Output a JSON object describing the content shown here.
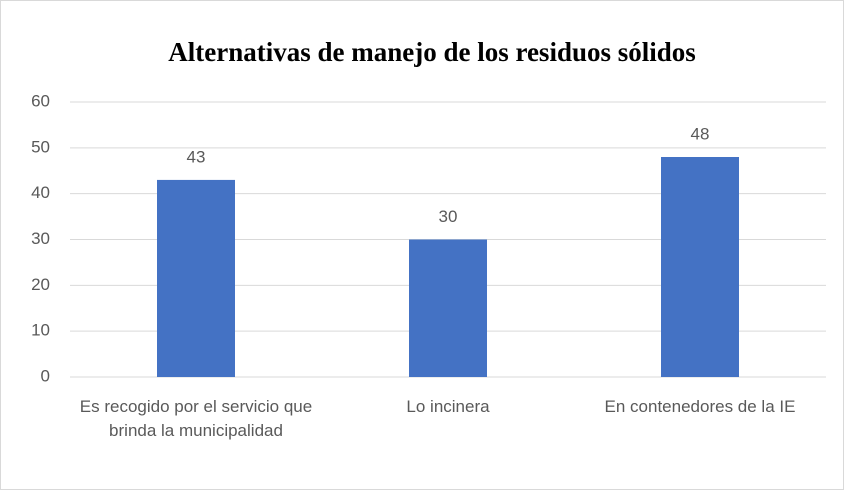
{
  "chart_data": {
    "type": "bar",
    "title": "Alternativas de manejo de los residuos sólidos",
    "categories": [
      "Es recogido por el servicio que brinda la municipalidad",
      "Lo incinera",
      "En contenedores de la IE"
    ],
    "values": [
      43,
      30,
      48
    ],
    "color": "#4472c4",
    "ylim": [
      0,
      60
    ],
    "yticks": [
      0,
      10,
      20,
      30,
      40,
      50,
      60
    ],
    "grid": true
  }
}
